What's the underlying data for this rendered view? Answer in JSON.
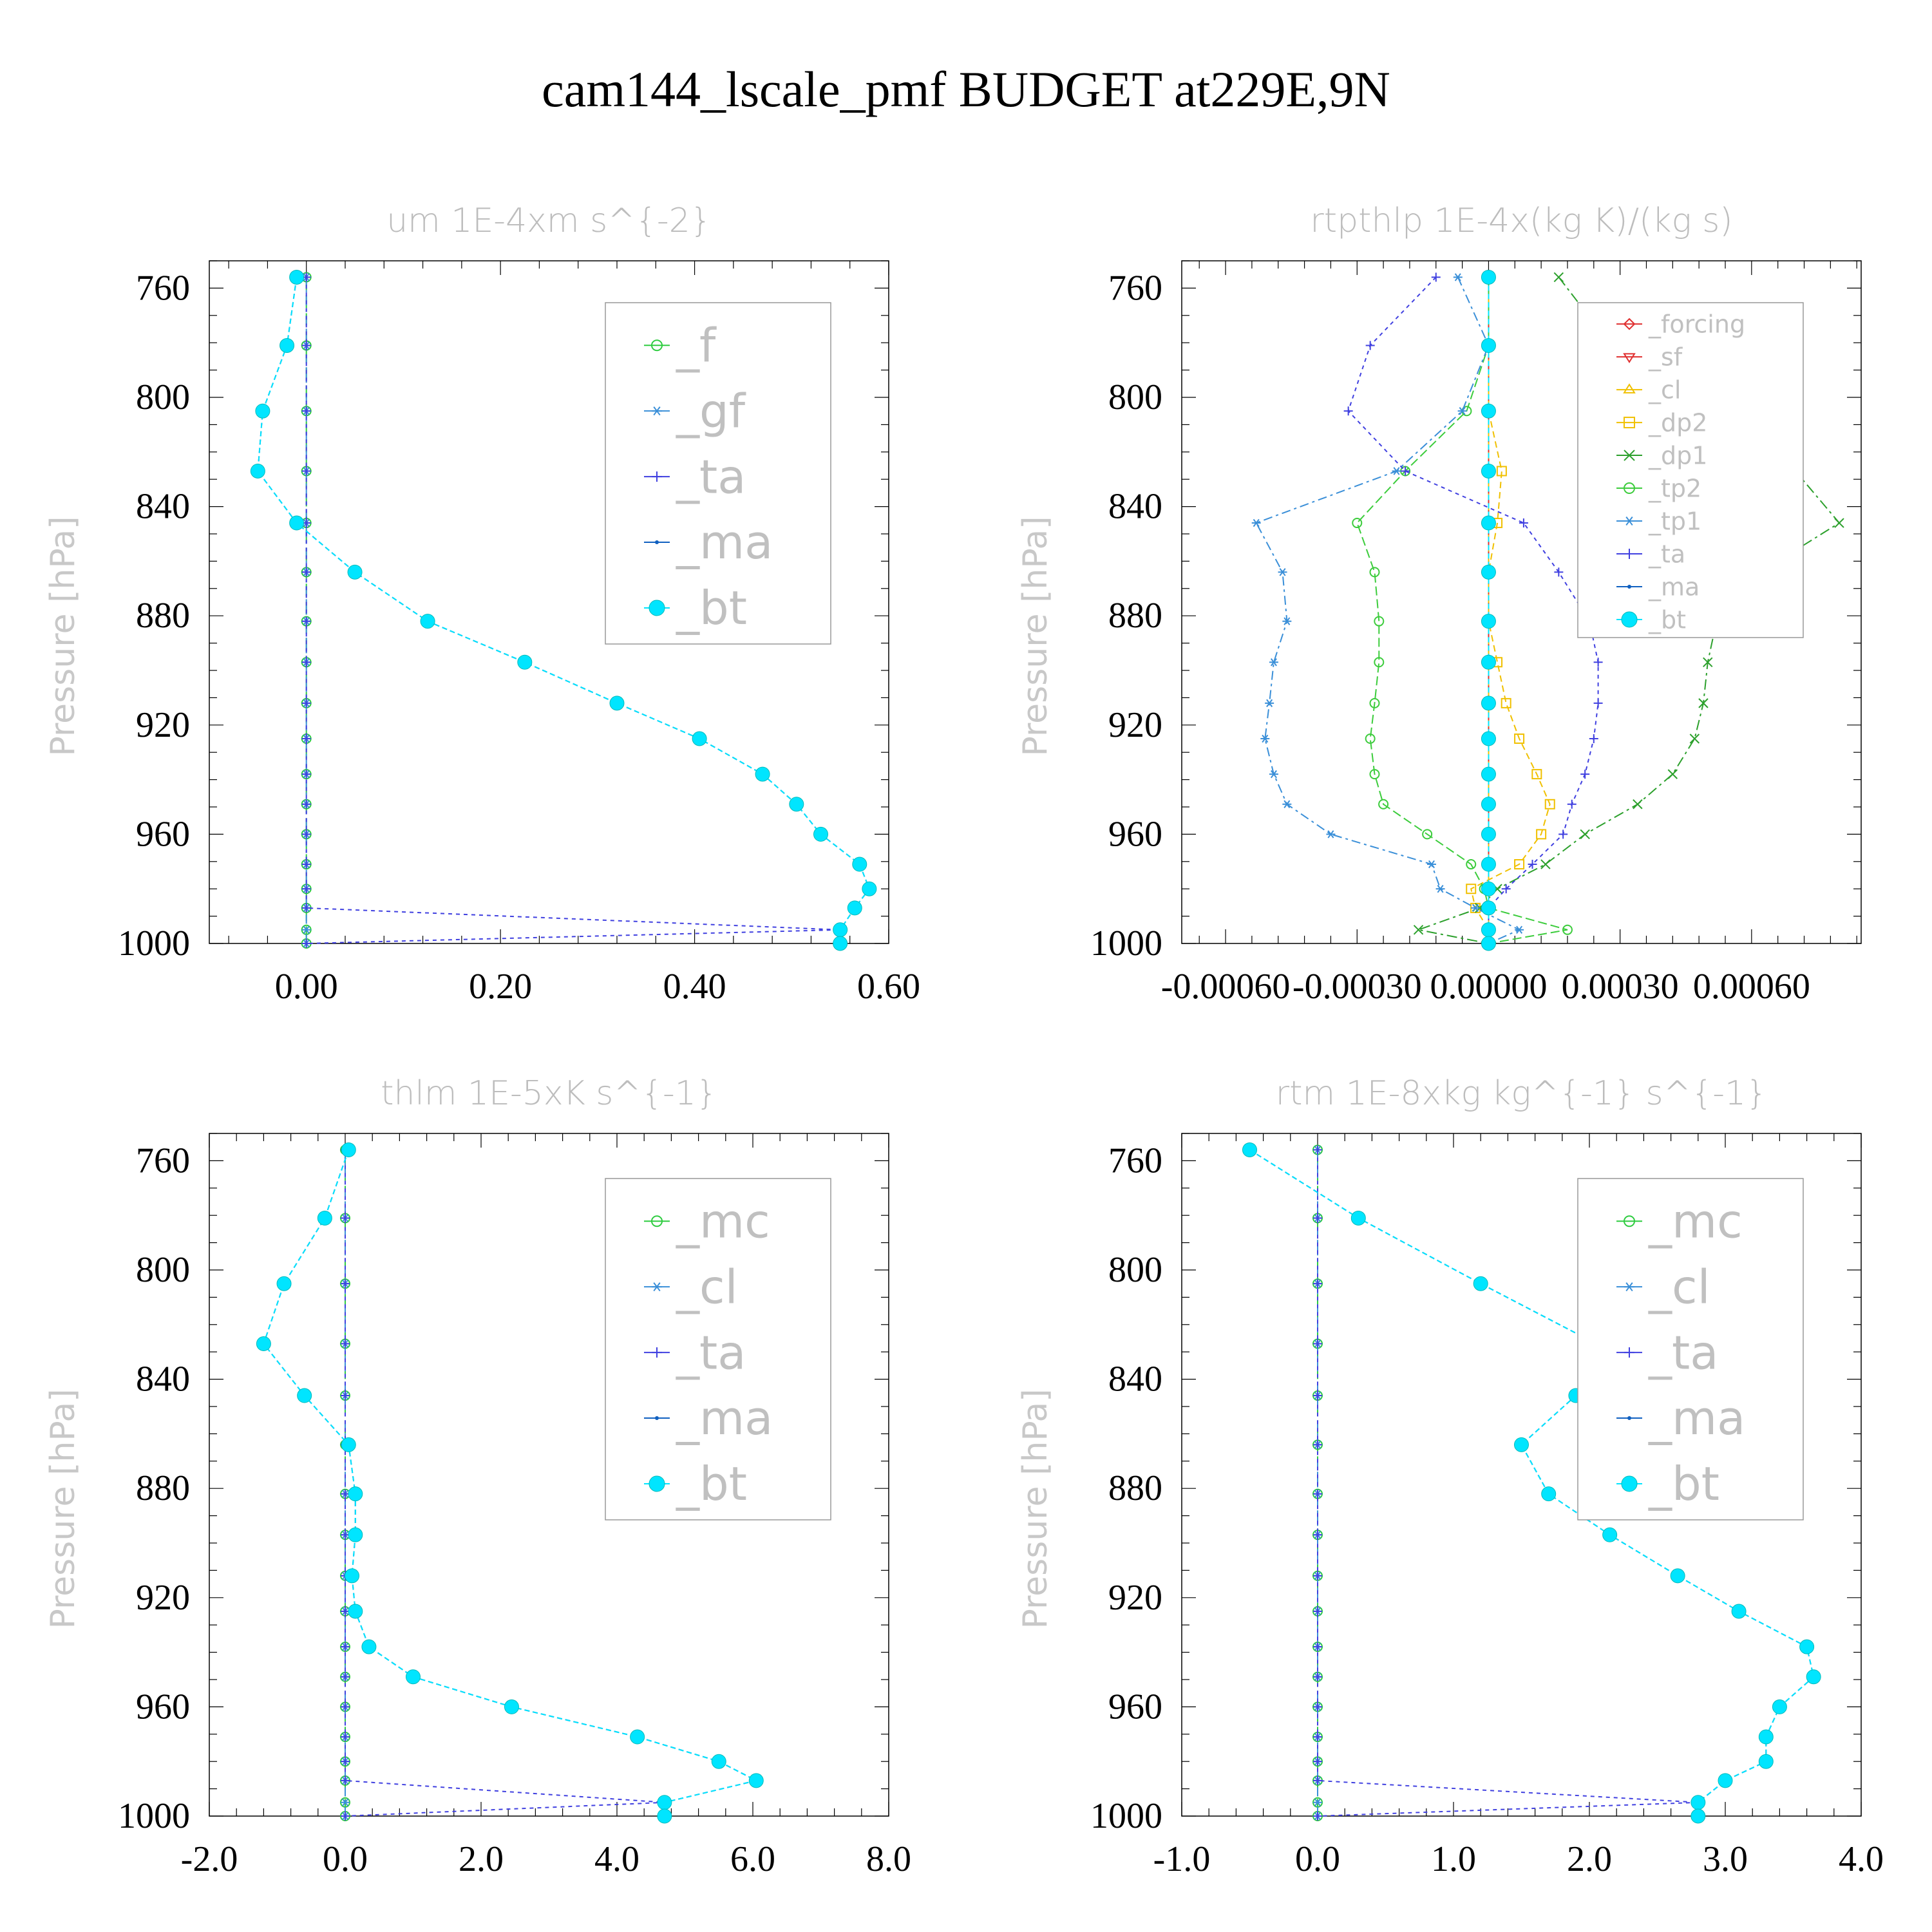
{
  "title": "cam144_lscale_pmf  BUDGET at229E,9N",
  "y_axis_label": "Pressure [hPa]",
  "colors": {
    "f": "#2ecc40",
    "gf": "#3a8fd8",
    "ta": "#4040e0",
    "ma": "#1060c0",
    "bt": "#00e5ff",
    "forcing": "#e03030",
    "sf": "#e03030",
    "cl": "#f0c000",
    "dp2": "#f0c000",
    "dp1": "#2ca02c",
    "tp2": "#3ccc3c",
    "tp1": "#3a8fd8",
    "mc": "#2ecc40"
  },
  "chart_data": [
    {
      "type": "line",
      "title": "um  1E-4xm s^{-2}",
      "ylabel": "Pressure [hPa]",
      "ylim": [
        750,
        1000
      ],
      "y_reversed": true,
      "xlim": [
        -0.1,
        0.6
      ],
      "xticks": [
        "0.00",
        "0.20",
        "0.40",
        "0.60"
      ],
      "xtick_values": [
        0,
        0.2,
        0.4,
        0.6
      ],
      "yticks": [
        "760",
        "800",
        "840",
        "880",
        "920",
        "960",
        "1000"
      ],
      "legend_size": "large",
      "legend": [
        "_f",
        "_gf",
        "_ta",
        "_ma",
        "_bt"
      ],
      "y": [
        756,
        781,
        805,
        827,
        846,
        864,
        882,
        897,
        912,
        925,
        938,
        949,
        960,
        971,
        980,
        987,
        995,
        1000
      ],
      "series": [
        {
          "name": "_f",
          "key": "f",
          "marker": "circle",
          "values": [
            0,
            0,
            0,
            0,
            0,
            0,
            0,
            0,
            0,
            0,
            0,
            0,
            0,
            0,
            0,
            0,
            0,
            0
          ]
        },
        {
          "name": "_gf",
          "key": "gf",
          "marker": "star",
          "values": [
            0,
            0,
            0,
            0,
            0,
            0,
            0,
            0,
            0,
            0,
            0,
            0,
            0,
            0,
            0,
            0,
            0,
            0
          ]
        },
        {
          "name": "_ta",
          "key": "ta",
          "marker": "plus",
          "values": [
            0,
            0,
            0,
            0,
            0,
            0,
            0,
            0,
            0,
            0,
            0,
            0,
            0,
            0,
            0,
            0,
            0.55,
            0
          ]
        },
        {
          "name": "_ma",
          "key": "ma",
          "marker": "dot",
          "values": [
            -0.01,
            -0.02,
            -0.045,
            -0.05,
            -0.01,
            0.05,
            0.125,
            0.225,
            0.32,
            0.405,
            0.47,
            0.505,
            0.53,
            0.57,
            0.58,
            0.565,
            0.55,
            0.55
          ]
        },
        {
          "name": "_bt",
          "key": "bt",
          "marker": "bigdot",
          "values": [
            -0.01,
            -0.02,
            -0.045,
            -0.05,
            -0.01,
            0.05,
            0.125,
            0.225,
            0.32,
            0.405,
            0.47,
            0.505,
            0.53,
            0.57,
            0.58,
            0.565,
            0.55,
            0.55
          ]
        }
      ]
    },
    {
      "type": "line",
      "title": "rtpthlp  1E-4x(kg K)/(kg s)",
      "ylabel": "Pressure [hPa]",
      "ylim": [
        750,
        1000
      ],
      "y_reversed": true,
      "xlim": [
        -0.0007,
        0.00085
      ],
      "xticks": [
        "-0.00060",
        "-0.00030",
        "0.00000",
        "0.00030",
        "0.00060"
      ],
      "xtick_values": [
        -0.0006,
        -0.0003,
        0,
        0.0003,
        0.0006
      ],
      "yticks": [
        "760",
        "800",
        "840",
        "880",
        "920",
        "960",
        "1000"
      ],
      "legend_size": "small",
      "legend": [
        "_forcing",
        "_sf",
        "_cl",
        "_dp2",
        "_dp1",
        "_tp2",
        "_tp1",
        "_ta",
        "_ma",
        "_bt"
      ],
      "y": [
        756,
        781,
        805,
        827,
        846,
        864,
        882,
        897,
        912,
        925,
        938,
        949,
        960,
        971,
        980,
        987,
        995,
        1000
      ],
      "series": [
        {
          "name": "_forcing",
          "key": "forcing",
          "marker": "diamond",
          "values": [
            0,
            0,
            0,
            0,
            0,
            0,
            0,
            0,
            0,
            0,
            0,
            0,
            0,
            0,
            0,
            0,
            0,
            0
          ]
        },
        {
          "name": "_sf",
          "key": "sf",
          "marker": "tri-down",
          "values": [
            0,
            0,
            0,
            0,
            0,
            0,
            0,
            0,
            0,
            0,
            0,
            0,
            0,
            0,
            0,
            0,
            0,
            0
          ]
        },
        {
          "name": "_cl",
          "key": "cl",
          "marker": "tri-up",
          "values": [
            0,
            0,
            0,
            0,
            0,
            0,
            0,
            0,
            0,
            0,
            0,
            0,
            0,
            0,
            0,
            0,
            0,
            0
          ]
        },
        {
          "name": "_dp2",
          "key": "dp2",
          "marker": "square",
          "values": [
            0,
            0,
            0,
            3e-05,
            2e-05,
            0,
            0,
            2e-05,
            4e-05,
            7e-05,
            0.00011,
            0.00014,
            0.00012,
            7e-05,
            -4e-05,
            -3e-05,
            0,
            0
          ]
        },
        {
          "name": "_dp1",
          "key": "dp1",
          "marker": "cross",
          "values": [
            0.00016,
            0.00028,
            0.00043,
            0.0007,
            0.0008,
            0.00062,
            0.00052,
            0.0005,
            0.00049,
            0.00047,
            0.00042,
            0.00034,
            0.00022,
            0.00013,
            2e-05,
            -2e-05,
            -0.00016,
            0
          ]
        },
        {
          "name": "_tp2",
          "key": "tp2",
          "marker": "circle",
          "values": [
            0,
            0,
            -5e-05,
            -0.00019,
            -0.0003,
            -0.00026,
            -0.00025,
            -0.00025,
            -0.00026,
            -0.00027,
            -0.00026,
            -0.00024,
            -0.00014,
            -4e-05,
            -1e-05,
            0,
            0.00018,
            0
          ]
        },
        {
          "name": "_tp1",
          "key": "tp1",
          "marker": "star",
          "values": [
            -7e-05,
            0,
            -6e-05,
            -0.00021,
            -0.00053,
            -0.00047,
            -0.00046,
            -0.00049,
            -0.0005,
            -0.00051,
            -0.00049,
            -0.00046,
            -0.00036,
            -0.00013,
            -0.00011,
            -3e-05,
            7e-05,
            0
          ]
        },
        {
          "name": "_ta",
          "key": "ta",
          "marker": "plus",
          "values": [
            -0.00012,
            -0.00027,
            -0.00032,
            -0.00019,
            8e-05,
            0.00016,
            0.00023,
            0.00025,
            0.00025,
            0.00024,
            0.00022,
            0.00019,
            0.00017,
            0.0001,
            4e-05,
            0,
            0,
            0
          ]
        },
        {
          "name": "_ma",
          "key": "ma",
          "marker": "dot",
          "values": [
            0,
            0,
            0,
            0,
            0,
            0,
            0,
            0,
            0,
            0,
            0,
            0,
            0,
            0,
            0,
            0,
            0,
            0
          ]
        },
        {
          "name": "_bt",
          "key": "bt",
          "marker": "bigdot",
          "values": [
            0,
            0,
            0,
            0,
            0,
            0,
            0,
            0,
            0,
            0,
            0,
            0,
            0,
            0,
            0,
            0,
            0,
            0
          ]
        }
      ]
    },
    {
      "type": "line",
      "title": "thlm  1E-5xK s^{-1}",
      "ylabel": "Pressure [hPa]",
      "ylim": [
        750,
        1000
      ],
      "y_reversed": true,
      "xlim": [
        -2,
        8
      ],
      "xticks": [
        "-2.0",
        "0.0",
        "2.0",
        "4.0",
        "6.0",
        "8.0"
      ],
      "xtick_values": [
        -2,
        0,
        2,
        4,
        6,
        8
      ],
      "yticks": [
        "760",
        "800",
        "840",
        "880",
        "920",
        "960",
        "1000"
      ],
      "legend_size": "large",
      "legend": [
        "_mc",
        "_cl",
        "_ta",
        "_ma",
        "_bt"
      ],
      "y": [
        756,
        781,
        805,
        827,
        846,
        864,
        882,
        897,
        912,
        925,
        938,
        949,
        960,
        971,
        980,
        987,
        995,
        1000
      ],
      "series": [
        {
          "name": "_mc",
          "key": "mc",
          "marker": "circle",
          "values": [
            0,
            0,
            0,
            0,
            0,
            0,
            0,
            0,
            0,
            0,
            0,
            0,
            0,
            0,
            0,
            0,
            0,
            0
          ]
        },
        {
          "name": "_cl",
          "key": "gf",
          "marker": "star",
          "values": [
            0,
            0,
            0,
            0,
            0,
            0,
            0,
            0,
            0,
            0,
            0,
            0,
            0,
            0,
            0,
            0,
            0,
            0
          ]
        },
        {
          "name": "_ta",
          "key": "ta",
          "marker": "plus",
          "values": [
            0,
            0,
            0,
            0,
            0,
            0,
            0,
            0,
            0,
            0,
            0,
            0,
            0,
            0,
            0,
            0,
            4.7,
            0
          ]
        },
        {
          "name": "_ma",
          "key": "ma",
          "marker": "dot",
          "values": [
            0.05,
            -0.3,
            -0.9,
            -1.2,
            -0.6,
            0.05,
            0.15,
            0.15,
            0.1,
            0.15,
            0.35,
            1.0,
            2.45,
            4.3,
            5.5,
            6.05,
            4.7,
            4.7
          ]
        },
        {
          "name": "_bt",
          "key": "bt",
          "marker": "bigdot",
          "values": [
            0.05,
            -0.3,
            -0.9,
            -1.2,
            -0.6,
            0.05,
            0.15,
            0.15,
            0.1,
            0.15,
            0.35,
            1.0,
            2.45,
            4.3,
            5.5,
            6.05,
            4.7,
            4.7
          ]
        }
      ]
    },
    {
      "type": "line",
      "title": "rtm  1E-8xkg kg^{-1} s^{-1}",
      "ylabel": "Pressure [hPa]",
      "ylim": [
        750,
        1000
      ],
      "y_reversed": true,
      "xlim": [
        -1,
        4
      ],
      "xticks": [
        "-1.0",
        "0.0",
        "1.0",
        "2.0",
        "3.0",
        "4.0"
      ],
      "xtick_values": [
        -1,
        0,
        1,
        2,
        3,
        4
      ],
      "yticks": [
        "760",
        "800",
        "840",
        "880",
        "920",
        "960",
        "1000"
      ],
      "legend_size": "large",
      "legend": [
        "_mc",
        "_cl",
        "_ta",
        "_ma",
        "_bt"
      ],
      "y": [
        756,
        781,
        805,
        827,
        846,
        864,
        882,
        897,
        912,
        925,
        938,
        949,
        960,
        971,
        980,
        987,
        995,
        1000
      ],
      "series": [
        {
          "name": "_mc",
          "key": "mc",
          "marker": "circle",
          "values": [
            0,
            0,
            0,
            0,
            0,
            0,
            0,
            0,
            0,
            0,
            0,
            0,
            0,
            0,
            0,
            0,
            0,
            0
          ]
        },
        {
          "name": "_cl",
          "key": "gf",
          "marker": "star",
          "values": [
            0,
            0,
            0,
            0,
            0,
            0,
            0,
            0,
            0,
            0,
            0,
            0,
            0,
            0,
            0,
            0,
            0,
            0
          ]
        },
        {
          "name": "_ta",
          "key": "ta",
          "marker": "plus",
          "values": [
            0,
            0,
            0,
            0,
            0,
            0,
            0,
            0,
            0,
            0,
            0,
            0,
            0,
            0,
            0,
            0,
            2.8,
            0
          ]
        },
        {
          "name": "_ma",
          "key": "ma",
          "marker": "dot",
          "values": [
            -0.5,
            0.3,
            1.2,
            2.05,
            1.9,
            1.5,
            1.7,
            2.15,
            2.65,
            3.1,
            3.6,
            3.65,
            3.4,
            3.3,
            3.3,
            3.0,
            2.8,
            2.8
          ]
        },
        {
          "name": "_bt",
          "key": "bt",
          "marker": "bigdot",
          "values": [
            -0.5,
            0.3,
            1.2,
            2.05,
            1.9,
            1.5,
            1.7,
            2.15,
            2.65,
            3.1,
            3.6,
            3.65,
            3.4,
            3.3,
            3.3,
            3.0,
            2.8,
            2.8
          ]
        }
      ]
    }
  ]
}
